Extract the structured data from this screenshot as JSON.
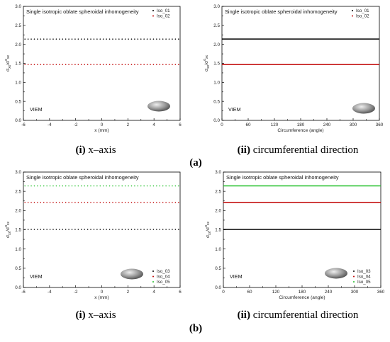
{
  "chart_data": [
    {
      "type": "scatter",
      "title": "Single isotropic oblate spheroidal inhomogeneity",
      "xlabel": "x (mm)",
      "ylabel": "σ_xx/σ°_xx",
      "xlim": [
        -6,
        6
      ],
      "ylim": [
        0,
        3.0
      ],
      "xticks": [
        "-6",
        "-4",
        "-2",
        "0",
        "2",
        "4",
        "6"
      ],
      "yticks": [
        "0.0",
        "0.5",
        "1.0",
        "1.5",
        "2.0",
        "2.5",
        "3.0"
      ],
      "annotation": "VIEM",
      "legend_position": "top-right",
      "series": [
        {
          "name": "Iso_01",
          "color": "#000000",
          "x": [
            -6,
            6
          ],
          "y": [
            2.14,
            2.14
          ]
        },
        {
          "name": "Iso_02",
          "color": "#c00000",
          "x": [
            -6,
            6
          ],
          "y": [
            1.47,
            1.47
          ]
        }
      ]
    },
    {
      "type": "line",
      "title": "Single isotropic oblate spheroidal inhomogeneity",
      "xlabel": "Circumference (angle)",
      "ylabel": "σ_xx/σ°_xx",
      "xlim": [
        0,
        360
      ],
      "ylim": [
        0,
        3.0
      ],
      "xticks": [
        "0",
        "60",
        "120",
        "180",
        "240",
        "300",
        "360"
      ],
      "yticks": [
        "0.0",
        "0.5",
        "1.0",
        "1.5",
        "2.0",
        "2.5",
        "3.0"
      ],
      "annotation": "VIEM",
      "legend_position": "top-right",
      "series": [
        {
          "name": "Iso_01",
          "color": "#000000",
          "x": [
            0,
            360
          ],
          "y": [
            2.14,
            2.14
          ]
        },
        {
          "name": "Iso_02",
          "color": "#c00000",
          "x": [
            0,
            360
          ],
          "y": [
            1.47,
            1.47
          ]
        }
      ]
    },
    {
      "type": "scatter",
      "title": "Single isotropic oblate spheroidal inhomogeneity",
      "xlabel": "x (mm)",
      "ylabel": "σ_xx/σ°_xx",
      "xlim": [
        -6,
        6
      ],
      "ylim": [
        0,
        3.0
      ],
      "xticks": [
        "-6",
        "-4",
        "-2",
        "0",
        "2",
        "4",
        "6"
      ],
      "yticks": [
        "0.0",
        "0.5",
        "1.0",
        "1.5",
        "2.0",
        "2.5",
        "3.0"
      ],
      "annotation": "VIEM",
      "legend_position": "bottom-right",
      "series": [
        {
          "name": "Iso_03",
          "color": "#000000",
          "x": [
            -6,
            6
          ],
          "y": [
            1.51,
            1.51
          ]
        },
        {
          "name": "Iso_04",
          "color": "#c00000",
          "x": [
            -6,
            6
          ],
          "y": [
            2.21,
            2.21
          ]
        },
        {
          "name": "Iso_05",
          "color": "#22c02a",
          "x": [
            -6,
            6
          ],
          "y": [
            2.64,
            2.64
          ]
        }
      ]
    },
    {
      "type": "line",
      "title": "Single isotropic oblate spheroidal inhomogeneity",
      "xlabel": "Circumference (angle)",
      "ylabel": "σ_xx/σ°_xx",
      "xlim": [
        0,
        360
      ],
      "ylim": [
        0,
        3.0
      ],
      "xticks": [
        "0",
        "60",
        "120",
        "180",
        "240",
        "300",
        "360"
      ],
      "yticks": [
        "0.0",
        "0.5",
        "1.0",
        "1.5",
        "2.0",
        "2.5",
        "3.0"
      ],
      "annotation": "VIEM",
      "legend_position": "bottom-right",
      "series": [
        {
          "name": "Iso_03",
          "color": "#000000",
          "x": [
            0,
            360
          ],
          "y": [
            1.51,
            1.51
          ]
        },
        {
          "name": "Iso_04",
          "color": "#c00000",
          "x": [
            0,
            360
          ],
          "y": [
            2.21,
            2.21
          ]
        },
        {
          "name": "Iso_05",
          "color": "#22c02a",
          "x": [
            0,
            360
          ],
          "y": [
            2.64,
            2.64
          ]
        }
      ]
    }
  ],
  "captions": {
    "a_left": {
      "num": "(i)",
      "text": " x–axis"
    },
    "a_right": {
      "num": "(ii)",
      "text": " circumferential direction"
    },
    "a_label": "(a)",
    "b_left": {
      "num": "(i)",
      "text": " x–axis"
    },
    "b_right": {
      "num": "(ii)",
      "text": " circumferential direction"
    },
    "b_label": "(b)"
  }
}
